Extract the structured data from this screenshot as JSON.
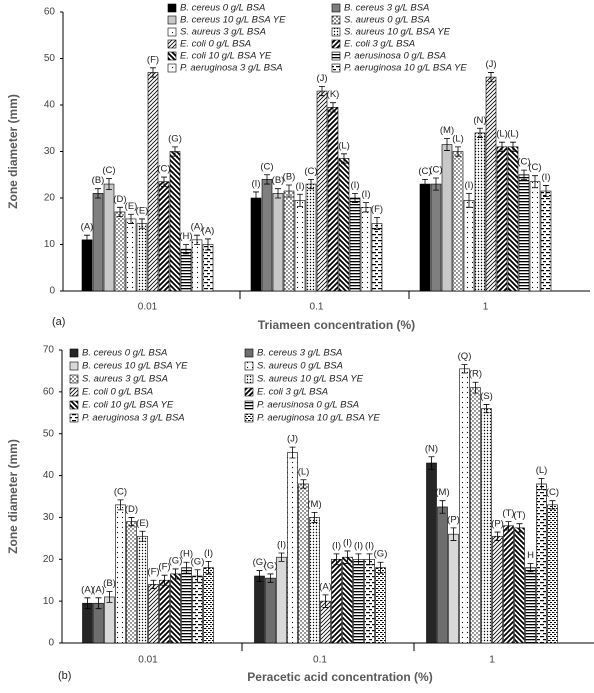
{
  "chart_data": [
    {
      "type": "bar",
      "panel_label": "(a)",
      "x_label": "Triameen concentration (%)",
      "y_label": "Zone diameter (mm)",
      "categories": [
        "0.01",
        "0.1",
        "1"
      ],
      "ylim": [
        0,
        60
      ],
      "yticks": [
        0,
        10,
        20,
        30,
        40,
        50,
        60
      ],
      "series": [
        {
          "name": "B. cereus 0 g/L BSA",
          "color": "#000000",
          "pattern": "solid",
          "values": [
            11,
            20,
            23
          ],
          "errors": [
            1,
            1.3,
            1
          ],
          "labels": [
            "(A)",
            "(I)",
            "(C)"
          ]
        },
        {
          "name": "B. cereus 3 g/L BSA",
          "color": "#7f7f7f",
          "pattern": "solid",
          "values": [
            21,
            24,
            23
          ],
          "errors": [
            1,
            1,
            1.3
          ],
          "labels": [
            "(B)",
            "(C)",
            "(C)"
          ]
        },
        {
          "name": "B. cereus 10 g/L BSA YE",
          "color": "#c8c8c8",
          "pattern": "solid",
          "values": [
            23,
            21,
            31.5
          ],
          "errors": [
            1.2,
            1,
            1.3
          ],
          "labels": [
            "(C)",
            "(B)",
            "(M)"
          ]
        },
        {
          "name": "S. aureus 0 g/L BSA",
          "color": "#000000",
          "pattern": "dots",
          "values": [
            17,
            21.5,
            30
          ],
          "errors": [
            1,
            1.3,
            1
          ],
          "labels": [
            "(D)",
            "(B)",
            "(L)"
          ]
        },
        {
          "name": "S. aureus 3 g/L BSA",
          "color": "#000000",
          "pattern": "dots-sparse",
          "values": [
            15.5,
            19.5,
            19.5
          ],
          "errors": [
            1,
            1.3,
            1.5
          ],
          "labels": [
            "(E)",
            "(I)",
            "(I)"
          ]
        },
        {
          "name": "S. aureus 10 g/L BSA YE",
          "color": "#000000",
          "pattern": "dots-dense",
          "values": [
            14.5,
            23,
            34
          ],
          "errors": [
            1,
            1,
            1
          ],
          "labels": [
            "(E)",
            "(C)",
            "(N)"
          ]
        },
        {
          "name": "E. coli 0 g/L BSA",
          "color": "#000000",
          "pattern": "diag",
          "values": [
            47,
            43,
            46
          ],
          "errors": [
            1,
            1,
            1
          ],
          "labels": [
            "(F)",
            "(J)",
            "(J)"
          ]
        },
        {
          "name": "E. coli 3 g/L BSA",
          "color": "#000000",
          "pattern": "diag-thick",
          "values": [
            23.5,
            39.5,
            31
          ],
          "errors": [
            1,
            1,
            1
          ],
          "labels": [
            "(C)",
            "(K)",
            "(L)"
          ]
        },
        {
          "name": "E. coli 10 g/L BSA YE",
          "color": "#000000",
          "pattern": "diag-left",
          "values": [
            30,
            28.5,
            31
          ],
          "errors": [
            1,
            1,
            1
          ],
          "labels": [
            "(G)",
            "(L)",
            "(L)"
          ]
        },
        {
          "name": "P. aerusinosa 0 g/L BSA",
          "color": "#000000",
          "pattern": "hlines",
          "values": [
            9,
            20,
            25
          ],
          "errors": [
            1,
            1,
            1
          ],
          "labels": [
            "(H)",
            "(I)",
            "(C)"
          ]
        },
        {
          "name": "P. aeruginosa 3 g/L BSA",
          "color": "#000000",
          "pattern": "dots-sparse",
          "values": [
            11,
            18,
            23.5
          ],
          "errors": [
            1,
            1,
            1.3
          ],
          "labels": [
            "(A)",
            "(I)",
            "(C)"
          ]
        },
        {
          "name": "P. aeruginosa 10 g/L BSA YE",
          "color": "#000000",
          "pattern": "hdash",
          "values": [
            10,
            14.5,
            21.5
          ],
          "errors": [
            1.2,
            1.3,
            1.2
          ],
          "labels": [
            "(A)",
            "(F)",
            "(I)"
          ]
        }
      ]
    },
    {
      "type": "bar",
      "panel_label": "(b)",
      "x_label": "Peracetic acid concentration (%)",
      "y_label": "Zone diameter (mm)",
      "categories": [
        "0.01",
        "0.1",
        "1"
      ],
      "ylim": [
        0,
        70
      ],
      "yticks": [
        0,
        10,
        20,
        30,
        40,
        50,
        60,
        70
      ],
      "series": [
        {
          "name": "B. cereus 0 g/L BSA",
          "color": "#262626",
          "pattern": "solid",
          "values": [
            9.5,
            16,
            43
          ],
          "errors": [
            1.3,
            1.3,
            1.5
          ],
          "labels": [
            "(A)",
            "(G)",
            "(N)"
          ]
        },
        {
          "name": "B. cereus 3 g/L BSA",
          "color": "#6e6e6e",
          "pattern": "solid",
          "values": [
            9.5,
            15.5,
            32.5
          ],
          "errors": [
            1.3,
            1,
            1.5
          ],
          "labels": [
            "(A)",
            "(G)",
            "(M)"
          ]
        },
        {
          "name": "B. cereus 10 g/L BSA YE",
          "color": "#d9d9d9",
          "pattern": "solid",
          "values": [
            11,
            20.5,
            26
          ],
          "errors": [
            1.3,
            1,
            1.5
          ],
          "labels": [
            "(B)",
            "(I)",
            "(P)"
          ]
        },
        {
          "name": "S. aureus 0 g/L BSA",
          "color": "#000000",
          "pattern": "dots-sparse",
          "values": [
            33,
            45.5,
            65.5
          ],
          "errors": [
            1.2,
            1.3,
            1
          ],
          "labels": [
            "(C)",
            "(J)",
            "(Q)"
          ]
        },
        {
          "name": "S. aureus 3 g/L BSA",
          "color": "#000000",
          "pattern": "dots",
          "values": [
            29,
            38,
            61
          ],
          "errors": [
            1,
            1,
            1.3
          ],
          "labels": [
            "(D)",
            "(L)",
            "(R)"
          ]
        },
        {
          "name": "S. aureus 10 g/L BSA YE",
          "color": "#000000",
          "pattern": "dots-dense",
          "values": [
            25.5,
            30,
            56
          ],
          "errors": [
            1.2,
            1.2,
            1
          ],
          "labels": [
            "(E)",
            "(M)",
            "(S)"
          ]
        },
        {
          "name": "E. coli 0 g/L BSA",
          "color": "#000000",
          "pattern": "diag",
          "values": [
            14,
            10,
            25.5
          ],
          "errors": [
            1,
            1.5,
            1
          ],
          "labels": [
            "(F)",
            "(A)",
            "(P)"
          ]
        },
        {
          "name": "E. coli 3 g/L BSA",
          "color": "#000000",
          "pattern": "diag-thick",
          "values": [
            15,
            20,
            28
          ],
          "errors": [
            1.2,
            1.3,
            1
          ],
          "labels": [
            "(F)",
            "(I)",
            "(T)"
          ]
        },
        {
          "name": "E. coli 10 g/L BSA YE",
          "color": "#000000",
          "pattern": "diag-left",
          "values": [
            16.5,
            20.5,
            27.5
          ],
          "errors": [
            1.2,
            1.5,
            1
          ],
          "labels": [
            "(G)",
            "(I)",
            "(T)"
          ]
        },
        {
          "name": "P. aerusinosa 0 g/L BSA",
          "color": "#000000",
          "pattern": "hlines",
          "values": [
            18,
            20,
            18
          ],
          "errors": [
            1.3,
            1.3,
            1
          ],
          "labels": [
            "(H)",
            "(I)",
            "H"
          ]
        },
        {
          "name": "P. aeruginosa 3 g/L BSA",
          "color": "#000000",
          "pattern": "hdash",
          "values": [
            16,
            20,
            38
          ],
          "errors": [
            1.5,
            1.3,
            1.3
          ],
          "labels": [
            "(G)",
            "(I)",
            "(L)"
          ]
        },
        {
          "name": "P. aeruginosa 10 g/L BSA YE",
          "color": "#000000",
          "pattern": "hdash-fine",
          "values": [
            18,
            18,
            33
          ],
          "errors": [
            1.5,
            1.3,
            1
          ],
          "labels": [
            "(I)",
            "(G)",
            "(C)"
          ]
        }
      ]
    }
  ]
}
